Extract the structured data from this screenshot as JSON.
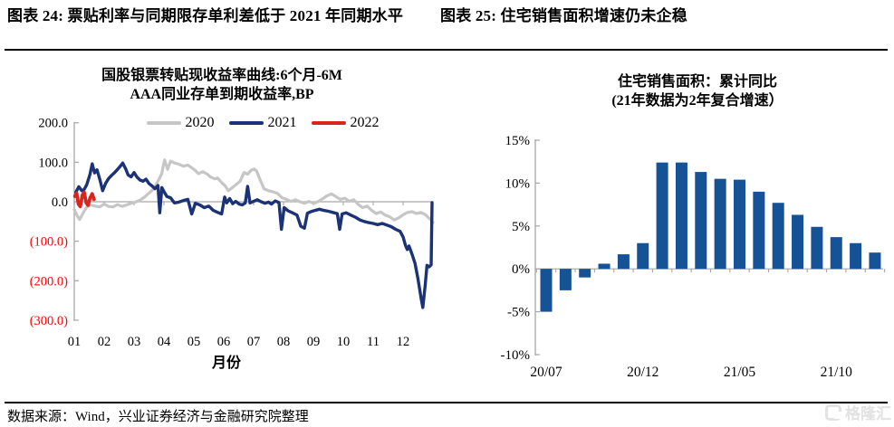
{
  "page": {
    "captions": {
      "left": "图表 24:  票贴利率与同期限存单利差低于 2021 年同期水平",
      "right": "图表 25:  住宅销售面积增速仍未企稳"
    },
    "source": "数据来源：Wind，兴业证券经济与金融研究院整理",
    "watermark": "格隆汇"
  },
  "chart_data": [
    {
      "type": "line",
      "title_line1": "国股银票转贴现收益率曲线:6个月-6M",
      "title_line2": "AAA同业存单到期收益率,BP",
      "xlabel": "月份",
      "x_ticks": [
        "01",
        "02",
        "03",
        "04",
        "05",
        "06",
        "07",
        "08",
        "09",
        "10",
        "11",
        "12"
      ],
      "ylim": [
        -300,
        200
      ],
      "y_ticks": [
        {
          "value": 200,
          "label": "200.0"
        },
        {
          "value": 100,
          "label": "100.0"
        },
        {
          "value": 0,
          "label": "0.0"
        },
        {
          "value": -100,
          "label": "(100.0)"
        },
        {
          "value": -200,
          "label": "(200.0)"
        },
        {
          "value": -300,
          "label": "(300.0)"
        }
      ],
      "positive_label_color": "#000000",
      "negative_label_color": "#ff0000",
      "axis_color": "#a6a6a6",
      "grid": false,
      "legend_position": "top",
      "series": [
        {
          "name": "2020",
          "color": "#c6c6c6",
          "points": [
            [
              0.0,
              -20
            ],
            [
              0.1,
              -36
            ],
            [
              0.18,
              -45
            ],
            [
              0.3,
              -28
            ],
            [
              0.42,
              -13
            ],
            [
              0.55,
              -8
            ],
            [
              0.7,
              -11
            ],
            [
              0.85,
              -13
            ],
            [
              1.0,
              -6
            ],
            [
              1.15,
              -12
            ],
            [
              1.3,
              -13
            ],
            [
              1.45,
              -7
            ],
            [
              1.6,
              -12
            ],
            [
              1.75,
              -8
            ],
            [
              1.9,
              -4
            ],
            [
              2.05,
              -1
            ],
            [
              2.2,
              4
            ],
            [
              2.35,
              12
            ],
            [
              2.5,
              22
            ],
            [
              2.65,
              32
            ],
            [
              2.8,
              52
            ],
            [
              2.92,
              70
            ],
            [
              3.02,
              106
            ],
            [
              3.12,
              82
            ],
            [
              3.22,
              103
            ],
            [
              3.35,
              98
            ],
            [
              3.5,
              95
            ],
            [
              3.65,
              90
            ],
            [
              3.8,
              93
            ],
            [
              3.95,
              85
            ],
            [
              4.05,
              79
            ],
            [
              4.15,
              71
            ],
            [
              4.3,
              76
            ],
            [
              4.45,
              70
            ],
            [
              4.55,
              63
            ],
            [
              4.7,
              58
            ],
            [
              4.8,
              60
            ],
            [
              4.95,
              47
            ],
            [
              5.05,
              40
            ],
            [
              5.15,
              28
            ],
            [
              5.28,
              35
            ],
            [
              5.42,
              44
            ],
            [
              5.55,
              52
            ],
            [
              5.68,
              74
            ],
            [
              5.8,
              70
            ],
            [
              5.92,
              80
            ],
            [
              6.02,
              83
            ],
            [
              6.1,
              78
            ],
            [
              6.22,
              55
            ],
            [
              6.35,
              33
            ],
            [
              6.5,
              28
            ],
            [
              6.65,
              25
            ],
            [
              6.8,
              21
            ],
            [
              6.95,
              10
            ],
            [
              7.1,
              6
            ],
            [
              7.25,
              1
            ],
            [
              7.4,
              5
            ],
            [
              7.55,
              0
            ],
            [
              7.7,
              -4
            ],
            [
              7.85,
              1
            ],
            [
              8.0,
              -4
            ],
            [
              8.15,
              0
            ],
            [
              8.3,
              7
            ],
            [
              8.45,
              15
            ],
            [
              8.6,
              20
            ],
            [
              8.75,
              13
            ],
            [
              8.9,
              6
            ],
            [
              9.05,
              9
            ],
            [
              9.2,
              1
            ],
            [
              9.35,
              5
            ],
            [
              9.5,
              -7
            ],
            [
              9.65,
              -15
            ],
            [
              9.8,
              -11
            ],
            [
              9.95,
              -22
            ],
            [
              10.1,
              -30
            ],
            [
              10.25,
              -26
            ],
            [
              10.4,
              -34
            ],
            [
              10.55,
              -38
            ],
            [
              10.7,
              -46
            ],
            [
              10.85,
              -41
            ],
            [
              11.0,
              -33
            ],
            [
              11.15,
              -27
            ],
            [
              11.3,
              -25
            ],
            [
              11.45,
              -30
            ],
            [
              11.6,
              -27
            ],
            [
              11.75,
              -33
            ],
            [
              11.9,
              -44
            ],
            [
              12.0,
              -52
            ]
          ]
        },
        {
          "name": "2021",
          "color": "#1b3376",
          "points": [
            [
              0.05,
              24
            ],
            [
              0.15,
              38
            ],
            [
              0.25,
              28
            ],
            [
              0.33,
              31
            ],
            [
              0.42,
              44
            ],
            [
              0.52,
              68
            ],
            [
              0.6,
              96
            ],
            [
              0.68,
              73
            ],
            [
              0.76,
              81
            ],
            [
              0.86,
              55
            ],
            [
              0.95,
              28
            ],
            [
              1.05,
              47
            ],
            [
              1.15,
              59
            ],
            [
              1.25,
              67
            ],
            [
              1.35,
              74
            ],
            [
              1.45,
              82
            ],
            [
              1.55,
              91
            ],
            [
              1.62,
              98
            ],
            [
              1.72,
              83
            ],
            [
              1.8,
              68
            ],
            [
              1.9,
              63
            ],
            [
              2.0,
              74
            ],
            [
              2.1,
              62
            ],
            [
              2.2,
              55
            ],
            [
              2.3,
              52
            ],
            [
              2.4,
              57
            ],
            [
              2.5,
              46
            ],
            [
              2.6,
              40
            ],
            [
              2.7,
              33
            ],
            [
              2.8,
              41
            ],
            [
              2.86,
              -28
            ],
            [
              2.93,
              36
            ],
            [
              3.0,
              26
            ],
            [
              3.1,
              13
            ],
            [
              3.22,
              10
            ],
            [
              3.35,
              -3
            ],
            [
              3.5,
              -1
            ],
            [
              3.65,
              3
            ],
            [
              3.8,
              6
            ],
            [
              3.93,
              -31
            ],
            [
              4.05,
              -4
            ],
            [
              4.2,
              -8
            ],
            [
              4.35,
              -15
            ],
            [
              4.5,
              -11
            ],
            [
              4.65,
              -22
            ],
            [
              4.8,
              -27
            ],
            [
              4.93,
              -31
            ],
            [
              5.03,
              12
            ],
            [
              5.1,
              -3
            ],
            [
              5.2,
              8
            ],
            [
              5.3,
              -5
            ],
            [
              5.4,
              1
            ],
            [
              5.52,
              -6
            ],
            [
              5.62,
              -8
            ],
            [
              5.72,
              -3
            ],
            [
              5.8,
              39
            ],
            [
              5.88,
              -3
            ],
            [
              6.0,
              1
            ],
            [
              6.12,
              5
            ],
            [
              6.25,
              0
            ],
            [
              6.38,
              -4
            ],
            [
              6.5,
              -1
            ],
            [
              6.6,
              -6
            ],
            [
              6.72,
              2
            ],
            [
              6.85,
              -2
            ],
            [
              6.93,
              -70
            ],
            [
              7.02,
              -15
            ],
            [
              7.15,
              -23
            ],
            [
              7.3,
              -28
            ],
            [
              7.45,
              -34
            ],
            [
              7.58,
              -62
            ],
            [
              7.7,
              -67
            ],
            [
              7.8,
              -29
            ],
            [
              7.92,
              -25
            ],
            [
              8.05,
              -22
            ],
            [
              8.2,
              -19
            ],
            [
              8.35,
              -22
            ],
            [
              8.5,
              -24
            ],
            [
              8.65,
              -27
            ],
            [
              8.8,
              -30
            ],
            [
              8.88,
              -70
            ],
            [
              8.96,
              -31
            ],
            [
              9.1,
              -28
            ],
            [
              9.25,
              -34
            ],
            [
              9.4,
              -39
            ],
            [
              9.55,
              -46
            ],
            [
              9.7,
              -50
            ],
            [
              9.85,
              -53
            ],
            [
              10.0,
              -55
            ],
            [
              10.15,
              -58
            ],
            [
              10.3,
              -55
            ],
            [
              10.45,
              -59
            ],
            [
              10.6,
              -63
            ],
            [
              10.75,
              -70
            ],
            [
              10.9,
              -75
            ],
            [
              11.0,
              -89
            ],
            [
              11.08,
              -110
            ],
            [
              11.14,
              -121
            ],
            [
              11.2,
              -112
            ],
            [
              11.3,
              -133
            ],
            [
              11.4,
              -156
            ],
            [
              11.5,
              -196
            ],
            [
              11.6,
              -243
            ],
            [
              11.66,
              -268
            ],
            [
              11.74,
              -212
            ],
            [
              11.8,
              -161
            ],
            [
              11.87,
              -165
            ],
            [
              11.94,
              -160
            ],
            [
              11.97,
              -2
            ]
          ]
        },
        {
          "name": "2022",
          "color": "#d6261d",
          "points": [
            [
              0.02,
              14
            ],
            [
              0.08,
              22
            ],
            [
              0.14,
              -6
            ],
            [
              0.2,
              -12
            ],
            [
              0.27,
              16
            ],
            [
              0.33,
              24
            ],
            [
              0.4,
              -3
            ],
            [
              0.46,
              -9
            ],
            [
              0.53,
              10
            ],
            [
              0.6,
              20
            ],
            [
              0.66,
              6
            ]
          ]
        }
      ]
    },
    {
      "type": "bar",
      "title_line1": "住宅销售面积：累计同比",
      "title_line2": "(21年数据为2年复合增速）",
      "bar_color": "#155296",
      "axis_color": "#a6a6a6",
      "grid": false,
      "ylim": [
        -10,
        15
      ],
      "y_ticks": [
        {
          "value": 15,
          "label": "15%"
        },
        {
          "value": 10,
          "label": "10%"
        },
        {
          "value": 5,
          "label": "5%"
        },
        {
          "value": 0,
          "label": "0%"
        },
        {
          "value": -5,
          "label": "-5%"
        },
        {
          "value": -10,
          "label": "-10%"
        }
      ],
      "categories": [
        "20/07",
        "20/08",
        "20/09",
        "20/10",
        "20/11",
        "20/12",
        "21/01",
        "21/02",
        "21/03",
        "21/04",
        "21/05",
        "21/06",
        "21/07",
        "21/08",
        "21/09",
        "21/10",
        "21/11",
        "21/12"
      ],
      "values": [
        -5.0,
        -2.5,
        -1.0,
        0.6,
        1.7,
        3.0,
        12.4,
        12.4,
        11.3,
        10.5,
        10.4,
        9.0,
        7.7,
        6.3,
        4.9,
        3.7,
        3.0,
        1.9
      ],
      "x_tick_indices": [
        0,
        5,
        10,
        15
      ],
      "x_tick_labels": [
        "20/07",
        "20/12",
        "21/05",
        "21/10"
      ]
    }
  ]
}
